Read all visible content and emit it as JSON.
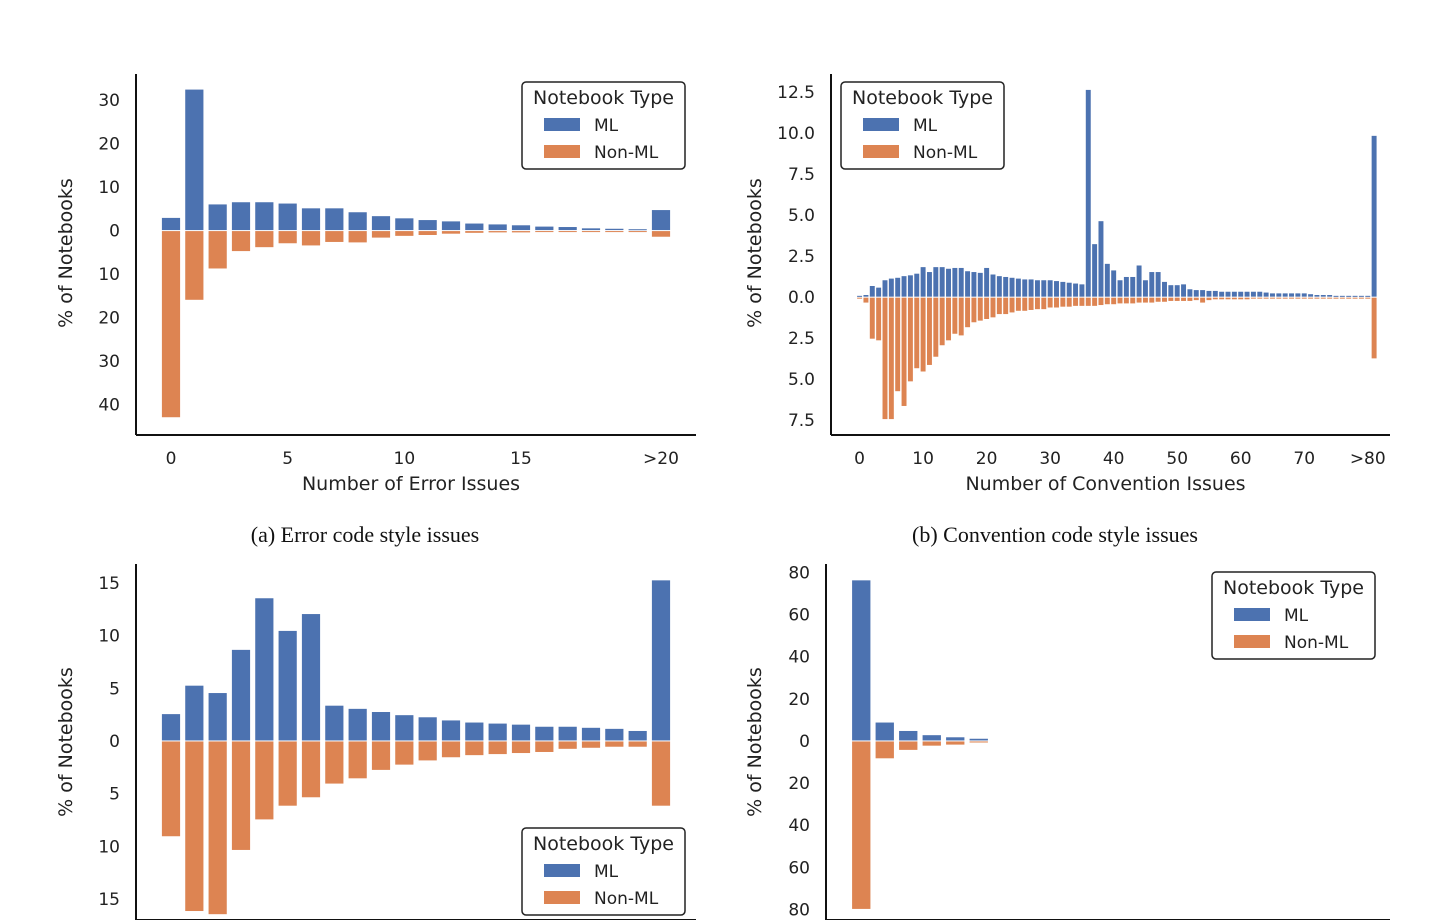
{
  "colors": {
    "ml": "#4c72b0",
    "nonml": "#dd8452"
  },
  "chart_data": [
    {
      "type": "bar",
      "subtype": "diverging",
      "ylabel": "% of Notebooks",
      "xlabel": "Number of Error Issues",
      "caption": "(a) Error code style issues",
      "legend": {
        "title": "Notebook Type",
        "entries": [
          "ML",
          "Non-ML"
        ],
        "position": "top-right"
      },
      "x": [
        0,
        1,
        2,
        3,
        4,
        5,
        6,
        7,
        8,
        9,
        10,
        11,
        12,
        13,
        14,
        15,
        16,
        17,
        18,
        19,
        20,
        21
      ],
      "xticks": [
        0,
        5,
        10,
        15,
        21
      ],
      "xticklabels": [
        "0",
        "5",
        "10",
        "15",
        ">20"
      ],
      "xlim": [
        -1.5,
        22.5
      ],
      "yticks": [
        -40,
        -30,
        -20,
        -10,
        0,
        10,
        20,
        30
      ],
      "yticklabels": [
        "40",
        "30",
        "20",
        "10",
        "0",
        "10",
        "20",
        "30"
      ],
      "ylim": [
        -47,
        36
      ],
      "series": [
        {
          "name": "ML",
          "values": [
            2.8,
            32.3,
            5.9,
            6.4,
            6.4,
            6.1,
            5.0,
            5.0,
            4.1,
            3.2,
            2.7,
            2.3,
            2.0,
            1.5,
            1.3,
            1.1,
            0.8,
            0.7,
            0.4,
            0.3,
            0.2,
            4.6
          ]
        },
        {
          "name": "Non-ML",
          "values": [
            -42.8,
            -15.8,
            -8.6,
            -4.6,
            -3.7,
            -2.8,
            -3.3,
            -2.5,
            -2.6,
            -1.5,
            -1.1,
            -0.9,
            -0.6,
            -0.4,
            -0.3,
            -0.3,
            -0.2,
            -0.2,
            -0.1,
            -0.1,
            -0.1,
            -1.3
          ]
        }
      ]
    },
    {
      "type": "bar",
      "subtype": "diverging",
      "ylabel": "% of Notebooks",
      "xlabel": "Number of Convention Issues",
      "caption": "(b) Convention code style issues",
      "legend": {
        "title": "Notebook Type",
        "entries": [
          "ML",
          "Non-ML"
        ],
        "position": "top-left"
      },
      "x": [
        0,
        1,
        2,
        3,
        4,
        5,
        6,
        7,
        8,
        9,
        10,
        11,
        12,
        13,
        14,
        15,
        16,
        17,
        18,
        19,
        20,
        21,
        22,
        23,
        24,
        25,
        26,
        27,
        28,
        29,
        30,
        31,
        32,
        33,
        34,
        35,
        36,
        37,
        38,
        39,
        40,
        41,
        42,
        43,
        44,
        45,
        46,
        47,
        48,
        49,
        50,
        51,
        52,
        53,
        54,
        55,
        56,
        57,
        58,
        59,
        60,
        61,
        62,
        63,
        64,
        65,
        66,
        67,
        68,
        69,
        70,
        71,
        72,
        73,
        74,
        75,
        76,
        77,
        78,
        79,
        80,
        81
      ],
      "xticks": [
        0,
        10,
        20,
        30,
        40,
        50,
        60,
        70,
        80
      ],
      "xticklabels": [
        "0",
        "10",
        "20",
        "30",
        "40",
        "50",
        "60",
        "70",
        ">80"
      ],
      "xlim": [
        -4.5,
        83.5
      ],
      "yticks": [
        -7.5,
        -5.0,
        -2.5,
        0.0,
        2.5,
        5.0,
        7.5,
        10.0,
        12.5
      ],
      "yticklabels": [
        "7.5",
        "5.0",
        "2.5",
        "0.0",
        "2.5",
        "5.0",
        "7.5",
        "10.0",
        "12.5"
      ],
      "ylim": [
        -8.4,
        13.6
      ],
      "series": [
        {
          "name": "ML",
          "values": [
            0.05,
            0.1,
            0.65,
            0.55,
            1.0,
            1.1,
            1.15,
            1.25,
            1.3,
            1.4,
            1.8,
            1.5,
            1.8,
            1.8,
            1.7,
            1.75,
            1.75,
            1.55,
            1.5,
            1.45,
            1.75,
            1.35,
            1.25,
            1.2,
            1.15,
            1.1,
            1.05,
            1.05,
            1.0,
            1.0,
            1.0,
            0.95,
            0.9,
            0.85,
            0.8,
            0.75,
            12.6,
            3.2,
            4.6,
            2.0,
            1.6,
            1.0,
            1.2,
            1.2,
            1.9,
            1.0,
            1.5,
            1.5,
            0.9,
            0.7,
            0.7,
            0.75,
            0.45,
            0.4,
            0.4,
            0.35,
            0.35,
            0.3,
            0.3,
            0.3,
            0.3,
            0.3,
            0.3,
            0.3,
            0.25,
            0.2,
            0.2,
            0.2,
            0.2,
            0.2,
            0.2,
            0.15,
            0.1,
            0.1,
            0.1,
            0.05,
            0.05,
            0.05,
            0.05,
            0.05,
            0.05,
            9.8
          ]
        },
        {
          "name": "Non-ML",
          "values": [
            0,
            -0.3,
            -2.5,
            -2.6,
            -7.4,
            -7.4,
            -5.7,
            -6.6,
            -5.1,
            -4.3,
            -4.5,
            -4.1,
            -3.6,
            -2.9,
            -2.6,
            -2.2,
            -2.3,
            -1.8,
            -1.5,
            -1.4,
            -1.3,
            -1.2,
            -1.0,
            -1.0,
            -0.9,
            -0.8,
            -0.8,
            -0.75,
            -0.7,
            -0.7,
            -0.6,
            -0.6,
            -0.55,
            -0.55,
            -0.5,
            -0.5,
            -0.5,
            -0.5,
            -0.45,
            -0.4,
            -0.4,
            -0.35,
            -0.35,
            -0.35,
            -0.3,
            -0.3,
            -0.3,
            -0.25,
            -0.25,
            -0.2,
            -0.2,
            -0.2,
            -0.2,
            -0.15,
            -0.3,
            -0.15,
            -0.1,
            -0.1,
            -0.1,
            -0.1,
            -0.1,
            -0.1,
            -0.05,
            -0.05,
            -0.05,
            -0.05,
            -0.05,
            -0.05,
            -0.05,
            -0.05,
            -0.05,
            -0.05,
            -0.05,
            -0.05,
            -0.05,
            -0.05,
            -0.05,
            -0.05,
            -0.05,
            -0.05,
            -0.05,
            -3.7
          ]
        }
      ]
    },
    {
      "type": "bar",
      "subtype": "diverging",
      "ylabel": "% of Notebooks",
      "xlabel": "",
      "caption": "",
      "legend": {
        "title": "Notebook Type",
        "entries": [
          "ML",
          "Non-ML"
        ],
        "position": "bottom-right"
      },
      "x": [
        0,
        1,
        2,
        3,
        4,
        5,
        6,
        7,
        8,
        9,
        10,
        11,
        12,
        13,
        14,
        15,
        16,
        17,
        18,
        19,
        20,
        21
      ],
      "xticks": [],
      "xticklabels": [],
      "xlim": [
        -1.5,
        22.5
      ],
      "yticks": [
        -15,
        -10,
        -5,
        0,
        5,
        10,
        15
      ],
      "yticklabels": [
        "15",
        "10",
        "5",
        "0",
        "5",
        "10",
        "15"
      ],
      "ylim": [
        -17,
        16.8
      ],
      "series": [
        {
          "name": "ML",
          "values": [
            2.5,
            5.2,
            4.5,
            8.6,
            13.5,
            10.4,
            12.0,
            3.3,
            3.0,
            2.7,
            2.4,
            2.2,
            1.9,
            1.7,
            1.6,
            1.5,
            1.3,
            1.3,
            1.2,
            1.1,
            0.9,
            15.2
          ]
        },
        {
          "name": "Non-ML",
          "values": [
            -9.0,
            -16.1,
            -16.4,
            -10.3,
            -7.4,
            -6.1,
            -5.3,
            -4.0,
            -3.5,
            -2.7,
            -2.2,
            -1.8,
            -1.5,
            -1.3,
            -1.2,
            -1.1,
            -1.0,
            -0.7,
            -0.6,
            -0.5,
            -0.5,
            -6.1
          ]
        }
      ]
    },
    {
      "type": "bar",
      "subtype": "diverging",
      "ylabel": "% of Notebooks",
      "xlabel": "",
      "caption": "",
      "legend": {
        "title": "Notebook Type",
        "entries": [
          "ML",
          "Non-ML"
        ],
        "position": "top-right"
      },
      "x": [
        0,
        1,
        2,
        3,
        4,
        5
      ],
      "xticks": [],
      "xticklabels": [],
      "xlim": [
        -1.5,
        22.5
      ],
      "yticks": [
        -80,
        -60,
        -40,
        -20,
        0,
        20,
        40,
        60,
        80
      ],
      "yticklabels": [
        "80",
        "60",
        "40",
        "20",
        "0",
        "20",
        "40",
        "60",
        "80"
      ],
      "ylim": [
        -85,
        84
      ],
      "series": [
        {
          "name": "ML",
          "values": [
            76.0,
            8.5,
            4.5,
            2.5,
            1.5,
            0.8
          ]
        },
        {
          "name": "Non-ML",
          "values": [
            -79.5,
            -8.0,
            -4.0,
            -2.0,
            -1.5,
            -0.5
          ]
        }
      ]
    }
  ]
}
